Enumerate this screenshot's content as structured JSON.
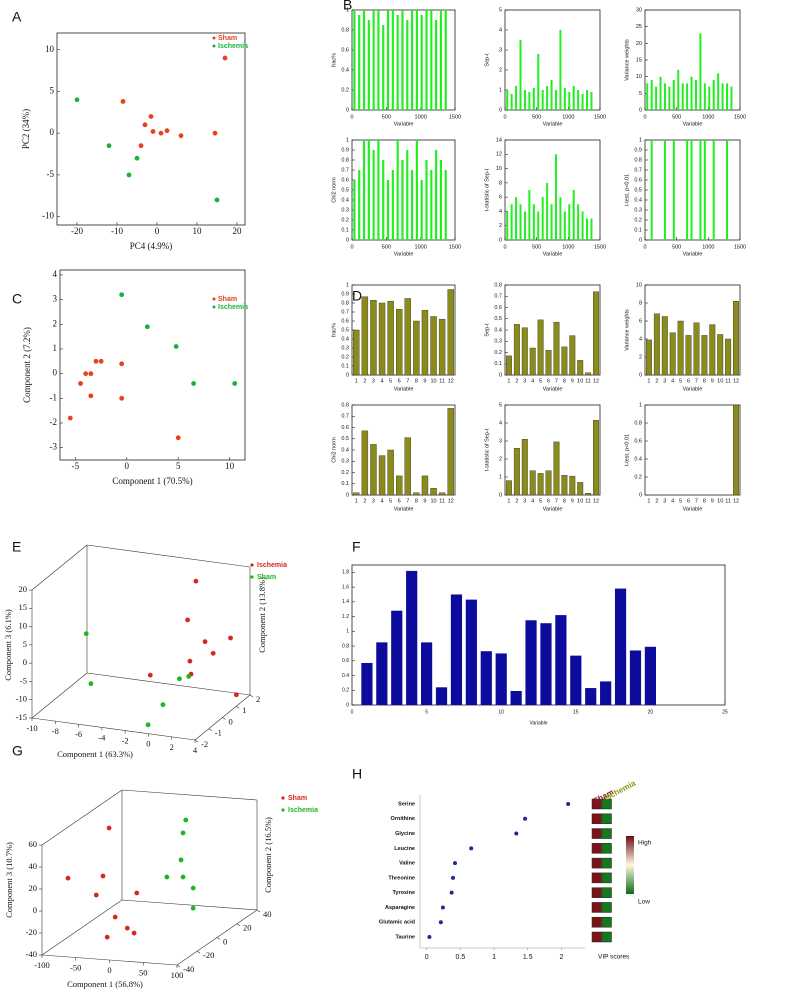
{
  "chart_data": [
    {
      "panel": "A",
      "type": "scatter",
      "xlabel": "PC4 (4.9%)",
      "ylabel": "PC2 (34%)",
      "xlim": [
        -25,
        22
      ],
      "ylim": [
        -11,
        12
      ],
      "xticks": [
        -20,
        -10,
        0,
        10,
        20
      ],
      "yticks": [
        -10,
        -5,
        0,
        5,
        10
      ],
      "legend": "upper right",
      "series": [
        {
          "name": "Sham",
          "color": "#e8401c",
          "x": [
            -8.5,
            -4,
            -3,
            -1.5,
            -1,
            1,
            2.5,
            6,
            14.5,
            17
          ],
          "values": [
            3.8,
            -1.5,
            1,
            2,
            0.2,
            0,
            0.3,
            -0.3,
            0,
            9
          ]
        },
        {
          "name": "Ischemia",
          "color": "#19b33b",
          "x": [
            -20,
            -12,
            -5,
            -7,
            15
          ],
          "values": [
            4,
            -1.5,
            -3,
            -5,
            -8
          ]
        }
      ]
    },
    {
      "panel": "B",
      "type": "bar",
      "ylabel": "frac%",
      "xlabel": "Variable",
      "xlim": [
        0,
        1500
      ],
      "xticks": [
        0,
        500,
        1000,
        1500
      ],
      "ylim": [
        0,
        1
      ],
      "yticks": [
        0,
        0.2,
        0.4,
        0.6,
        0.8,
        1
      ],
      "color": "#22ee22",
      "x": [
        35,
        105,
        175,
        245,
        315,
        385,
        455,
        525,
        595,
        665,
        735,
        805,
        875,
        945,
        1015,
        1085,
        1155,
        1225,
        1295,
        1365
      ],
      "values": [
        1,
        0.95,
        1,
        0.9,
        1,
        1,
        0.85,
        1,
        1,
        0.95,
        1,
        0.9,
        1,
        1,
        0.95,
        1,
        1,
        0.9,
        1,
        1
      ]
    },
    {
      "type": "bar",
      "ylabel": "Sep-t",
      "xlabel": "Variable",
      "xlim": [
        0,
        1500
      ],
      "xticks": [
        0,
        500,
        1000,
        1500
      ],
      "ylim": [
        0,
        5
      ],
      "yticks": [
        0,
        1,
        2,
        3,
        4,
        5
      ],
      "color": "#22ee22",
      "x": [
        35,
        105,
        175,
        245,
        315,
        385,
        455,
        525,
        595,
        665,
        735,
        805,
        875,
        945,
        1015,
        1085,
        1155,
        1225,
        1295,
        1365
      ],
      "values": [
        1,
        0.8,
        1.2,
        3.5,
        1,
        0.9,
        1.1,
        2.8,
        1,
        1.2,
        1.5,
        1,
        4,
        1.1,
        0.9,
        1.2,
        1,
        0.8,
        1,
        0.9
      ]
    },
    {
      "type": "bar",
      "ylabel": "Variance weights",
      "xlabel": "Variable",
      "xlim": [
        0,
        1500
      ],
      "xticks": [
        0,
        500,
        1000,
        1500
      ],
      "ylim": [
        0,
        30
      ],
      "yticks": [
        0,
        5,
        10,
        15,
        20,
        25,
        30
      ],
      "color": "#22ee22",
      "x": [
        35,
        105,
        175,
        245,
        315,
        385,
        455,
        525,
        595,
        665,
        735,
        805,
        875,
        945,
        1015,
        1085,
        1155,
        1225,
        1295,
        1365
      ],
      "values": [
        8,
        9,
        7,
        10,
        8,
        7,
        9,
        12,
        8,
        8,
        10,
        9,
        23,
        8,
        7,
        9,
        11,
        8,
        8,
        7
      ]
    },
    {
      "type": "bar",
      "ylabel": "Chi2 norm",
      "xlabel": "Variable",
      "xlim": [
        0,
        1500
      ],
      "xticks": [
        0,
        500,
        1000,
        1500
      ],
      "ylim": [
        0,
        1
      ],
      "yticks": [
        0,
        0.1,
        0.2,
        0.3,
        0.4,
        0.5,
        0.6,
        0.7,
        0.8,
        0.9,
        1
      ],
      "color": "#22ee22",
      "x": [
        35,
        105,
        175,
        245,
        315,
        385,
        455,
        525,
        595,
        665,
        735,
        805,
        875,
        945,
        1015,
        1085,
        1155,
        1225,
        1295,
        1365
      ],
      "values": [
        0.6,
        0.7,
        1,
        1,
        0.9,
        1,
        0.8,
        0.6,
        0.7,
        1,
        0.8,
        0.9,
        0.7,
        1,
        0.6,
        0.8,
        0.7,
        0.9,
        0.8,
        0.7
      ]
    },
    {
      "type": "bar",
      "ylabel": "t-statistic of Sep-t",
      "xlabel": "Variable",
      "xlim": [
        0,
        1500
      ],
      "xticks": [
        0,
        500,
        1000,
        1500
      ],
      "ylim": [
        0,
        14
      ],
      "yticks": [
        0,
        2,
        4,
        6,
        8,
        10,
        12,
        14
      ],
      "color": "#22ee22",
      "x": [
        35,
        105,
        175,
        245,
        315,
        385,
        455,
        525,
        595,
        665,
        735,
        805,
        875,
        945,
        1015,
        1085,
        1155,
        1225,
        1295,
        1365
      ],
      "values": [
        4,
        5,
        6,
        5,
        4,
        7,
        5,
        4,
        6,
        8,
        5,
        12,
        6,
        4,
        5,
        7,
        5,
        4,
        3,
        3
      ]
    },
    {
      "type": "bar",
      "ylabel": "t-test, p<0.01",
      "xlabel": "Variable",
      "xlim": [
        0,
        1500
      ],
      "xticks": [
        0,
        500,
        1000,
        1500
      ],
      "ylim": [
        0,
        1
      ],
      "yticks": [
        0,
        0.1,
        0.2,
        0.3,
        0.4,
        0.5,
        0.6,
        0.7,
        0.8,
        0.9,
        1
      ],
      "color": "#22ee22",
      "x": [
        35,
        105,
        175,
        245,
        315,
        385,
        455,
        525,
        595,
        665,
        735,
        805,
        875,
        945,
        1015,
        1085,
        1155,
        1225,
        1295,
        1365
      ],
      "values": [
        0,
        1,
        0,
        0,
        1,
        0,
        1,
        0,
        0,
        1,
        1,
        0,
        1,
        1,
        0,
        1,
        0,
        0,
        1,
        0
      ]
    },
    {
      "panel": "C",
      "type": "scatter",
      "xlabel": "Component 1 (70.5%)",
      "ylabel": "Component 2 (7.2%)",
      "xlim": [
        -6.5,
        11.5
      ],
      "ylim": [
        -3.5,
        4.2
      ],
      "xticks": [
        -5,
        0,
        5,
        10
      ],
      "yticks": [
        -3,
        -2,
        -1,
        0,
        1,
        2,
        3,
        4
      ],
      "legend": "upper right",
      "series": [
        {
          "name": "Sham",
          "color": "#e8401c",
          "x": [
            -5.5,
            -4.5,
            -4,
            -3.5,
            -3.5,
            -3,
            -2.5,
            -0.5,
            -0.5,
            5
          ],
          "values": [
            -1.8,
            -0.4,
            0,
            0,
            -0.9,
            0.5,
            0.5,
            0.4,
            -1,
            -2.6
          ]
        },
        {
          "name": "Ischemia",
          "color": "#19b33b",
          "x": [
            -0.5,
            2,
            4.8,
            6.5,
            10.5
          ],
          "values": [
            3.2,
            1.9,
            1.1,
            -0.4,
            -0.4
          ]
        }
      ]
    },
    {
      "panel": "D",
      "type": "bar",
      "ylabel": "frac%",
      "xlabel": "Variable",
      "categories": [
        "1",
        "2",
        "3",
        "4",
        "5",
        "6",
        "7",
        "8",
        "9",
        "10",
        "11",
        "12"
      ],
      "ylim": [
        0,
        1
      ],
      "yticks": [
        0,
        0.1,
        0.2,
        0.3,
        0.4,
        0.5,
        0.6,
        0.7,
        0.8,
        0.9,
        1
      ],
      "color": "#8b8b1a",
      "values": [
        0.5,
        0.87,
        0.83,
        0.8,
        0.82,
        0.73,
        0.85,
        0.6,
        0.72,
        0.65,
        0.62,
        0.95
      ]
    },
    {
      "type": "bar",
      "ylabel": "Sep-t",
      "xlabel": "Variable",
      "categories": [
        "1",
        "2",
        "3",
        "4",
        "5",
        "6",
        "7",
        "8",
        "9",
        "10",
        "11",
        "12"
      ],
      "ylim": [
        0,
        0.8
      ],
      "yticks": [
        0,
        0.1,
        0.2,
        0.3,
        0.4,
        0.5,
        0.6,
        0.7,
        0.8
      ],
      "color": "#8b8b1a",
      "values": [
        0.17,
        0.45,
        0.42,
        0.24,
        0.49,
        0.22,
        0.47,
        0.25,
        0.35,
        0.13,
        0.02,
        0.74
      ]
    },
    {
      "type": "bar",
      "ylabel": "Variance weights",
      "xlabel": "Variable",
      "categories": [
        "1",
        "2",
        "3",
        "4",
        "5",
        "6",
        "7",
        "8",
        "9",
        "10",
        "11",
        "12"
      ],
      "ylim": [
        0,
        10
      ],
      "yticks": [
        0,
        2,
        4,
        6,
        8,
        10
      ],
      "color": "#8b8b1a",
      "values": [
        3.9,
        6.8,
        6.5,
        4.7,
        6,
        4.4,
        5.8,
        4.4,
        5.6,
        4.5,
        4,
        8.2
      ]
    },
    {
      "type": "bar",
      "ylabel": "Chi2 norm",
      "xlabel": "Variable",
      "categories": [
        "1",
        "2",
        "3",
        "4",
        "5",
        "6",
        "7",
        "8",
        "9",
        "10",
        "11",
        "12"
      ],
      "ylim": [
        0,
        0.8
      ],
      "yticks": [
        0,
        0.1,
        0.2,
        0.3,
        0.4,
        0.5,
        0.6,
        0.7,
        0.8
      ],
      "color": "#8b8b1a",
      "values": [
        0.02,
        0.57,
        0.45,
        0.35,
        0.4,
        0.17,
        0.51,
        0.02,
        0.17,
        0.06,
        0.02,
        0.77
      ]
    },
    {
      "type": "bar",
      "ylabel": "t-statistic of Sep-t",
      "xlabel": "Variable",
      "categories": [
        "1",
        "2",
        "3",
        "4",
        "5",
        "6",
        "7",
        "8",
        "9",
        "10",
        "11",
        "12"
      ],
      "ylim": [
        0,
        5
      ],
      "yticks": [
        0,
        1,
        2,
        3,
        4,
        5
      ],
      "color": "#8b8b1a",
      "values": [
        0.8,
        2.6,
        3.1,
        1.35,
        1.2,
        1.35,
        2.95,
        1.1,
        1.05,
        0.7,
        0.1,
        4.15
      ]
    },
    {
      "type": "bar",
      "ylabel": "t-test, p<0.01",
      "xlabel": "Variable",
      "categories": [
        "1",
        "2",
        "3",
        "4",
        "5",
        "6",
        "7",
        "8",
        "9",
        "10",
        "11",
        "12"
      ],
      "ylim": [
        0,
        1
      ],
      "yticks": [
        0,
        0.2,
        0.4,
        0.6,
        0.8,
        1
      ],
      "color": "#8b8b1a",
      "values": [
        0,
        0,
        0,
        0,
        0,
        0,
        0,
        0,
        0,
        0,
        0,
        1
      ]
    },
    {
      "panel": "E",
      "type": "scatter3d",
      "xlabel": "Component 1 (63.3%)",
      "ylabel": "Component 2 (13.8%)",
      "zlabel": "Component 3 (6.1%)",
      "xlim": [
        -10,
        4
      ],
      "ylim": [
        -2,
        2
      ],
      "zlim": [
        -15,
        20
      ],
      "xticks": [
        -10,
        -8,
        -6,
        -4,
        -2,
        0,
        2,
        4
      ],
      "yticks": [
        -2,
        -1,
        0,
        1,
        2
      ],
      "zticks": [
        -15,
        -10,
        -5,
        0,
        5,
        10,
        15,
        20
      ],
      "series": [
        {
          "name": "Ischemia",
          "color": "#d42a1a",
          "x": [
            0.3,
            1,
            2.5,
            2.8,
            3.2,
            1.2,
            1.3,
            -2.2,
            3.3
          ],
          "y": [
            1.2,
            0,
            0,
            1.6,
            0,
            0,
            0,
            0,
            1.6
          ],
          "z": [
            17,
            10.4,
            5.1,
            1.3,
            2.2,
            -0.8,
            -4.3,
            -6.1,
            -14
          ]
        },
        {
          "name": "Sham",
          "color": "#1fb51f",
          "x": [
            -7.7,
            -7.3,
            0.3,
            -0.5,
            0.3,
            1.1
          ],
          "y": [
            0,
            0,
            -1.2,
            -1.6,
            0,
            0
          ],
          "z": [
            2.9,
            -10.6,
            -9.4,
            -14,
            -6,
            -5
          ]
        }
      ]
    },
    {
      "panel": "F",
      "type": "bar",
      "xlabel": "Variable",
      "xlim": [
        0,
        25
      ],
      "xticks": [
        0,
        5,
        10,
        15,
        20,
        25
      ],
      "ylim": [
        0,
        1.9
      ],
      "yticks": [
        0,
        0.2,
        0.4,
        0.6,
        0.8,
        1,
        1.2,
        1.4,
        1.6,
        1.8
      ],
      "color": "#0b0b9e",
      "x": [
        1,
        2,
        3,
        4,
        5,
        6,
        7,
        8,
        9,
        10,
        11,
        12,
        13,
        14,
        15,
        16,
        17,
        18,
        19,
        20
      ],
      "values": [
        0.57,
        0.85,
        1.28,
        1.82,
        0.85,
        0.24,
        1.5,
        1.43,
        0.73,
        0.7,
        0.19,
        1.15,
        1.11,
        1.22,
        0.67,
        0.23,
        0.32,
        1.58,
        0.74,
        0.79
      ]
    },
    {
      "panel": "G",
      "type": "scatter3d",
      "xlabel": "Component 1 (56.8%)",
      "ylabel": "Component 2 (16.5%)",
      "zlabel": "Component 3 (10.7%)",
      "xlim": [
        -100,
        100
      ],
      "ylim": [
        -40,
        40
      ],
      "zlim": [
        -40,
        60
      ],
      "xticks": [
        -100,
        -50,
        0,
        50,
        100
      ],
      "yticks": [
        -40,
        -20,
        0,
        20,
        40
      ],
      "zticks": [
        -40,
        -20,
        0,
        20,
        40,
        60
      ],
      "series": [
        {
          "name": "Sham",
          "color": "#d42a1a",
          "x": [
            -48,
            -97,
            -57,
            -67,
            -7,
            -39,
            -39,
            -21,
            -11
          ],
          "y": [
            -8,
            -16,
            -8,
            -8,
            -8,
            -8,
            -16,
            -8,
            -8
          ],
          "z": [
            57.8,
            15,
            13.8,
            -4,
            0.6,
            -22.7,
            -36,
            -32,
            -36
          ]
        },
        {
          "name": "Ischemia",
          "color": "#1fb51f",
          "x": [
            30,
            26,
            23,
            2,
            26,
            41,
            41
          ],
          "y": [
            16,
            16,
            16,
            16,
            16,
            16,
            16
          ],
          "z": [
            53.6,
            41.7,
            17,
            0.5,
            1.6,
            -7.7,
            -26
          ]
        }
      ]
    },
    {
      "panel": "H",
      "type": "dot",
      "xlabel": "VIP scores",
      "categories": [
        "Serine",
        "Ornithine",
        "Glycine",
        "Leucine",
        "Valine",
        "Threonine",
        "Tyrosine",
        "Asparagine",
        "Glutamic acid",
        "Taurine"
      ],
      "values": [
        2.1,
        1.46,
        1.33,
        0.66,
        0.42,
        0.39,
        0.37,
        0.24,
        0.21,
        0.04
      ],
      "xlim": [
        -0.1,
        2.35
      ],
      "xticks": [
        0,
        0.5,
        1,
        1.5,
        2
      ],
      "color": "#1a2b9a",
      "columns": [
        "Sham",
        "Ischemia"
      ],
      "cell_colors": [
        "#7b1416",
        "#127a1c"
      ],
      "colorbar": [
        "High",
        "Low"
      ]
    }
  ]
}
